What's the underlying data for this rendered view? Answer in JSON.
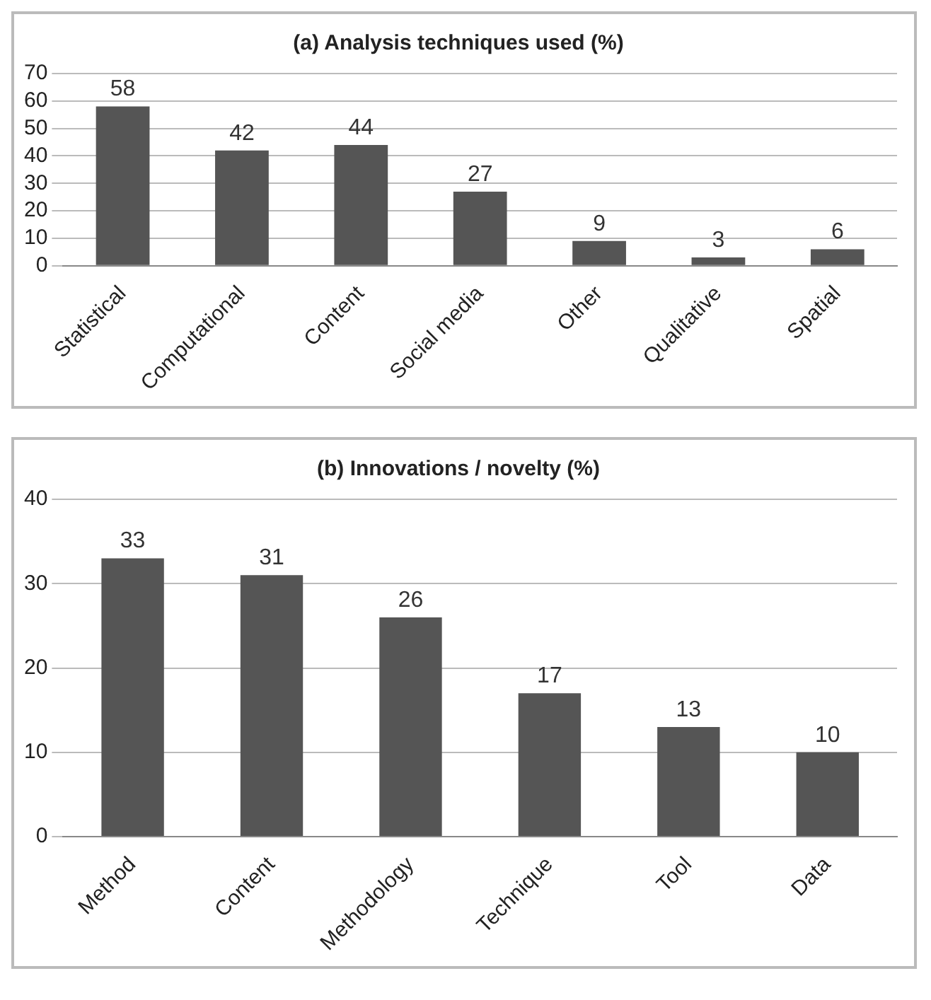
{
  "chart_data": [
    {
      "type": "bar",
      "title": "(a) Analysis techniques used (%)",
      "categories": [
        "Statistical",
        "Computational",
        "Content",
        "Social media",
        "Other",
        "Qualitative",
        "Spatial"
      ],
      "values": [
        58,
        42,
        44,
        27,
        9,
        3,
        6
      ],
      "color": "#555555",
      "ylim": [
        0,
        70
      ],
      "yticks": [
        0,
        10,
        20,
        30,
        40,
        50,
        60,
        70
      ],
      "grid": "y",
      "data_labels": true,
      "legend": false
    },
    {
      "type": "bar",
      "title": "(b) Innovations / novelty (%)",
      "categories": [
        "Method",
        "Content",
        "Methodology",
        "Technique",
        "Tool",
        "Data"
      ],
      "values": [
        33,
        31,
        26,
        17,
        13,
        10
      ],
      "color": "#555555",
      "ylim": [
        0,
        40
      ],
      "yticks": [
        0,
        10,
        20,
        30,
        40
      ],
      "grid": "y",
      "data_labels": true,
      "legend": false
    }
  ]
}
